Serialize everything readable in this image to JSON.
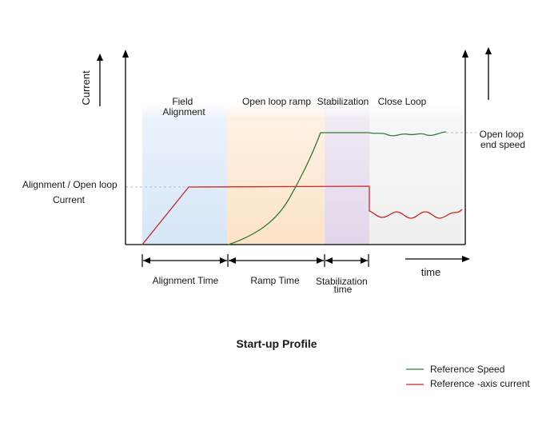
{
  "title": "Start-up Profile",
  "y_axis_label": "Current",
  "x_axis_label": "time",
  "phases": [
    {
      "label_lines": [
        "Field",
        "Alignment"
      ]
    },
    {
      "label_lines": [
        "Open loop ramp"
      ]
    },
    {
      "label_lines": [
        "Stabilization"
      ]
    },
    {
      "label_lines": [
        "Close Loop"
      ]
    }
  ],
  "durations": [
    {
      "label_lines": [
        "Alignment Time"
      ]
    },
    {
      "label_lines": [
        "Ramp Time"
      ]
    },
    {
      "label_lines": [
        "Stabilization",
        "time"
      ]
    }
  ],
  "left_annotation": {
    "lines": [
      "Alignment / Open loop",
      "Current"
    ]
  },
  "right_annotation": {
    "lines": [
      "Open loop",
      "end speed"
    ]
  },
  "legend": [
    {
      "label": "Reference Speed",
      "color": "#2e7d32"
    },
    {
      "label": "Reference -axis current",
      "color": "#c62828"
    }
  ],
  "colors": {
    "phase_alignment": "#d6e6f8",
    "phase_ramp": "#fde3c8",
    "phase_stabilization": "#e2d6ea",
    "phase_closeloop": "#efefef",
    "axis": "#000000",
    "dashed": "#bbbbbb"
  }
}
